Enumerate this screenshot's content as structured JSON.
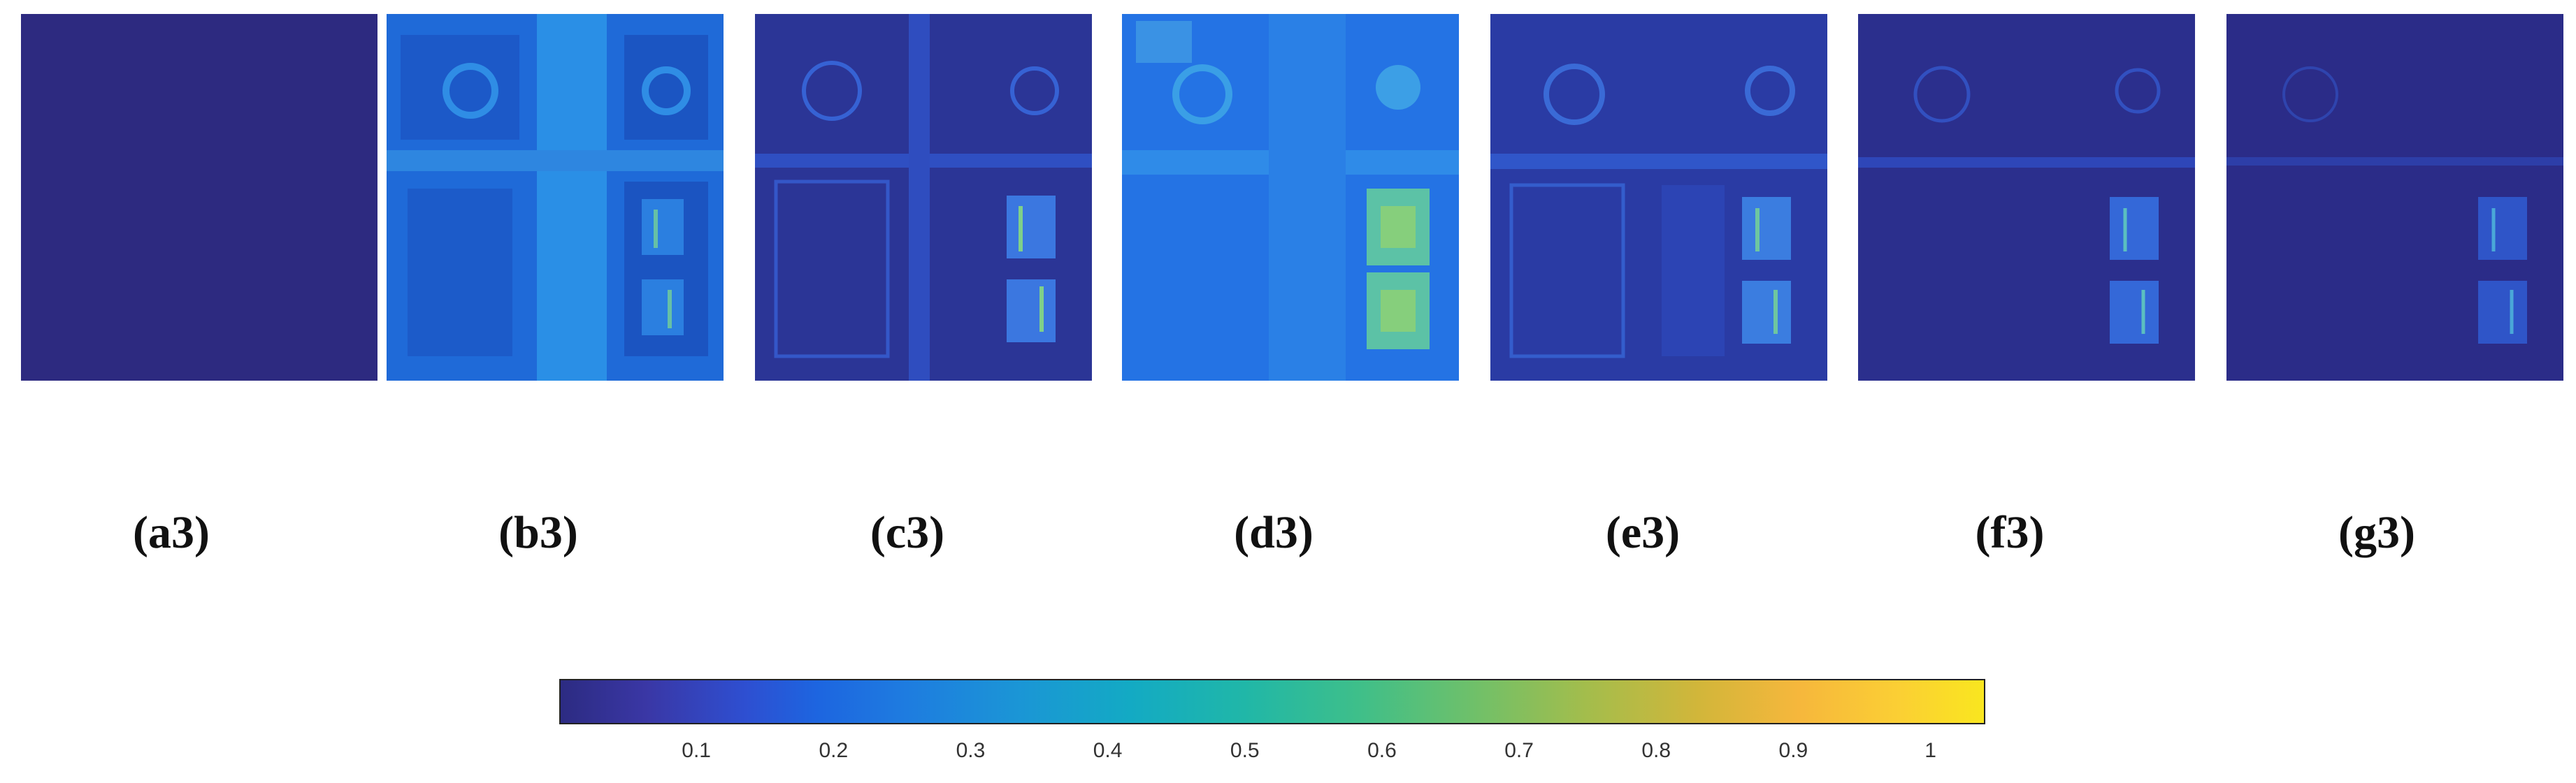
{
  "panels": [
    {
      "id": "a3",
      "label": "(a3)"
    },
    {
      "id": "b3",
      "label": "(b3)"
    },
    {
      "id": "c3",
      "label": "(c3)"
    },
    {
      "id": "d3",
      "label": "(d3)"
    },
    {
      "id": "e3",
      "label": "(e3)"
    },
    {
      "id": "f3",
      "label": "(f3)"
    },
    {
      "id": "g3",
      "label": "(g3)"
    }
  ],
  "colorbar": {
    "ticks": [
      {
        "value": 0.1,
        "label": "0.1"
      },
      {
        "value": 0.2,
        "label": "0.2"
      },
      {
        "value": 0.3,
        "label": "0.3"
      },
      {
        "value": 0.4,
        "label": "0.4"
      },
      {
        "value": 0.5,
        "label": "0.5"
      },
      {
        "value": 0.6,
        "label": "0.6"
      },
      {
        "value": 0.7,
        "label": "0.7"
      },
      {
        "value": 0.8,
        "label": "0.8"
      },
      {
        "value": 0.9,
        "label": "0.9"
      },
      {
        "value": 1,
        "label": "1"
      }
    ],
    "range": [
      0,
      1.04
    ],
    "colormap": [
      "#2c2b82",
      "#1d65e0",
      "#13aac4",
      "#3ebf8a",
      "#a3bd4c",
      "#f6b73c",
      "#f9e61f"
    ]
  }
}
